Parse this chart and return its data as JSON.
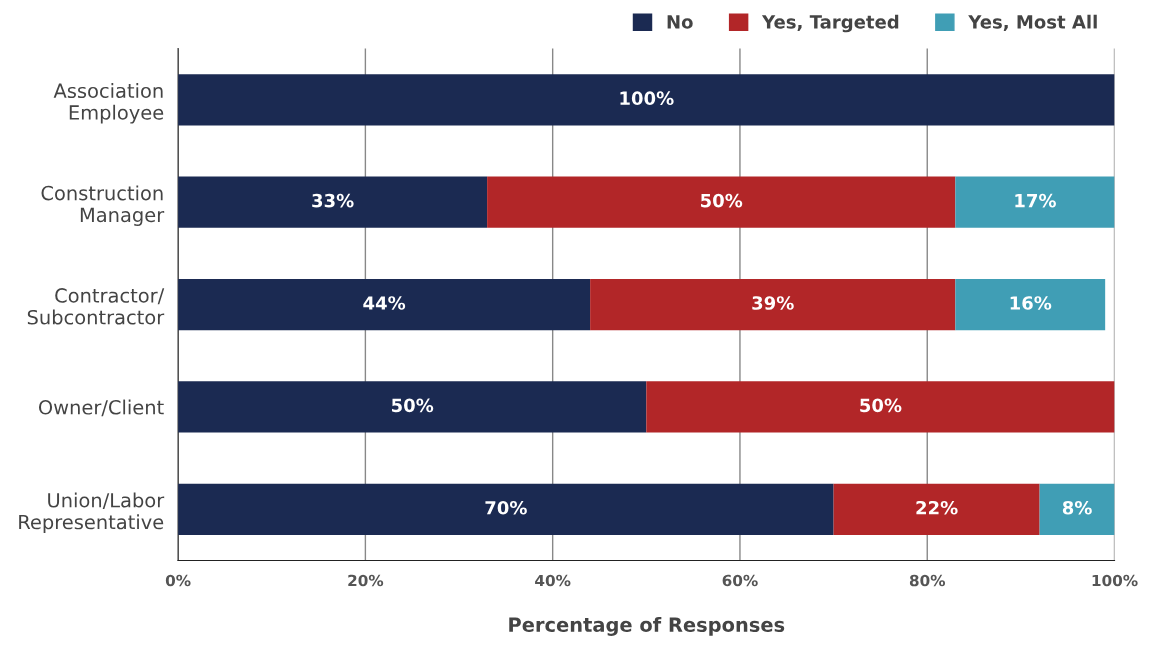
{
  "chart_data": {
    "type": "bar",
    "orientation": "horizontal",
    "stacked": true,
    "xlabel": "Percentage of Responses",
    "categories": [
      "Association\nEmployee",
      "Construction\nManager",
      "Contractor/\nSubcontractor",
      "Owner/Client",
      "Union/Labor\nRepresentative"
    ],
    "series": [
      {
        "name": "No",
        "color": "#1b2a52",
        "values": [
          100,
          33,
          44,
          50,
          70
        ],
        "value_labels": [
          "100%",
          "33%",
          "44%",
          "50%",
          "70%"
        ]
      },
      {
        "name": "Yes, Targeted",
        "color": "#b22628",
        "values": [
          null,
          50,
          39,
          50,
          22
        ],
        "value_labels": [
          null,
          "50%",
          "39%",
          "50%",
          "22%"
        ]
      },
      {
        "name": "Yes, Most All",
        "color": "#409eb5",
        "values": [
          null,
          17,
          16,
          null,
          8
        ],
        "value_labels": [
          null,
          "17%",
          "16%",
          null,
          "8%"
        ]
      }
    ],
    "xlim": [
      0,
      100
    ],
    "xticks": [
      {
        "value": 0,
        "label": "0%"
      },
      {
        "value": 20,
        "label": "20%"
      },
      {
        "value": 40,
        "label": "40%"
      },
      {
        "value": 60,
        "label": "60%"
      },
      {
        "value": 80,
        "label": "80%"
      },
      {
        "value": 100,
        "label": "100%"
      }
    ],
    "grid": "x",
    "legend": "top right"
  }
}
